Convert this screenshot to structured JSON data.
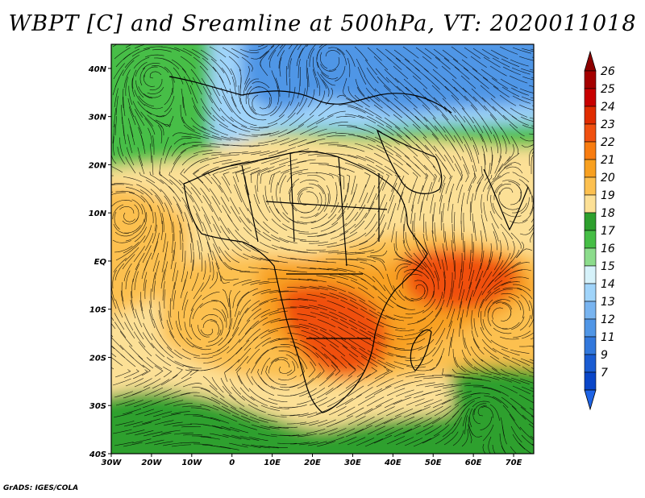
{
  "title": "WBPT [C] and Sreamline at 500hPa, VT: 2020011018",
  "credit": "GrADS: IGES/COLA",
  "map": {
    "lon_range": [
      -30,
      75
    ],
    "lat_range": [
      -40,
      45
    ],
    "x_ticks": [
      {
        "value": -30,
        "label": "30W"
      },
      {
        "value": -20,
        "label": "20W"
      },
      {
        "value": -10,
        "label": "10W"
      },
      {
        "value": 0,
        "label": "0"
      },
      {
        "value": 10,
        "label": "10E"
      },
      {
        "value": 20,
        "label": "20E"
      },
      {
        "value": 30,
        "label": "30E"
      },
      {
        "value": 40,
        "label": "40E"
      },
      {
        "value": 50,
        "label": "50E"
      },
      {
        "value": 60,
        "label": "60E"
      },
      {
        "value": 70,
        "label": "70E"
      }
    ],
    "y_ticks": [
      {
        "value": 40,
        "label": "40N"
      },
      {
        "value": 30,
        "label": "30N"
      },
      {
        "value": 20,
        "label": "20N"
      },
      {
        "value": 10,
        "label": "10N"
      },
      {
        "value": 0,
        "label": "EQ"
      },
      {
        "value": -10,
        "label": "10S"
      },
      {
        "value": -20,
        "label": "20S"
      },
      {
        "value": -30,
        "label": "30S"
      },
      {
        "value": -40,
        "label": "40S"
      }
    ]
  },
  "colorbar": {
    "labels": [
      "26",
      "25",
      "24",
      "23",
      "22",
      "21",
      "20",
      "19",
      "18",
      "17",
      "16",
      "15",
      "14",
      "13",
      "12",
      "11",
      "9",
      "7"
    ],
    "colors": [
      "#a50000",
      "#c80000",
      "#e02c00",
      "#f05010",
      "#f87c10",
      "#f8a020",
      "#fcc050",
      "#fce096",
      "#2ea02e",
      "#46be46",
      "#8cdc8c",
      "#d6f2fa",
      "#a0d4fa",
      "#78b4f0",
      "#5096e6",
      "#3278dc",
      "#1a5cd2",
      "#0a46c8"
    ],
    "top_arrow_color": "#8c0000",
    "bottom_arrow_color": "#1e64e6"
  },
  "field_colors": {
    "ocean_north": "#5096e6",
    "ocean_north_light": "#a0d4fa",
    "jet_green": "#46be46",
    "tropic_yellow": "#fce096",
    "tropic_orange": "#fcc050",
    "warm_orange": "#f8a020",
    "hot_red": "#f05010",
    "south_green": "#2ea02e"
  }
}
